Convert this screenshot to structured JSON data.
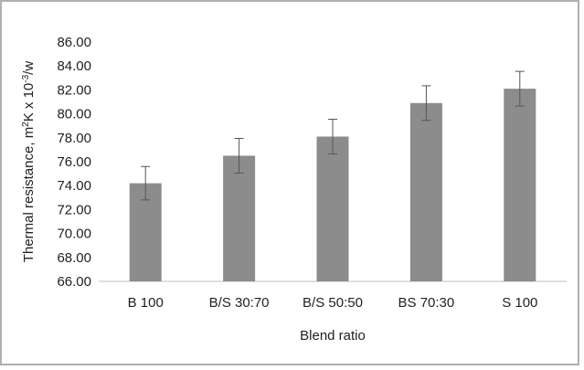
{
  "chart_data": {
    "type": "bar",
    "categories": [
      "B 100",
      "B/S 30:70",
      "B/S 50:50",
      "BS 70:30",
      "S 100"
    ],
    "values": [
      74.2,
      76.5,
      78.1,
      80.9,
      82.1
    ],
    "error": [
      1.4,
      1.45,
      1.45,
      1.45,
      1.45
    ],
    "xlabel": "Blend ratio",
    "ylabel_parts": [
      "Thermal resistance, m",
      "2",
      "K x 10",
      "-3",
      "/w"
    ],
    "ylim": [
      66,
      86
    ],
    "yticks": [
      "86.00",
      "84.00",
      "82.00",
      "80.00",
      "78.00",
      "76.00",
      "74.00",
      "72.00",
      "70.00",
      "68.00",
      "66.00"
    ],
    "grid": false,
    "legend": "none",
    "bar_color": "#8c8c8c",
    "errorbar_color": "#555555"
  }
}
